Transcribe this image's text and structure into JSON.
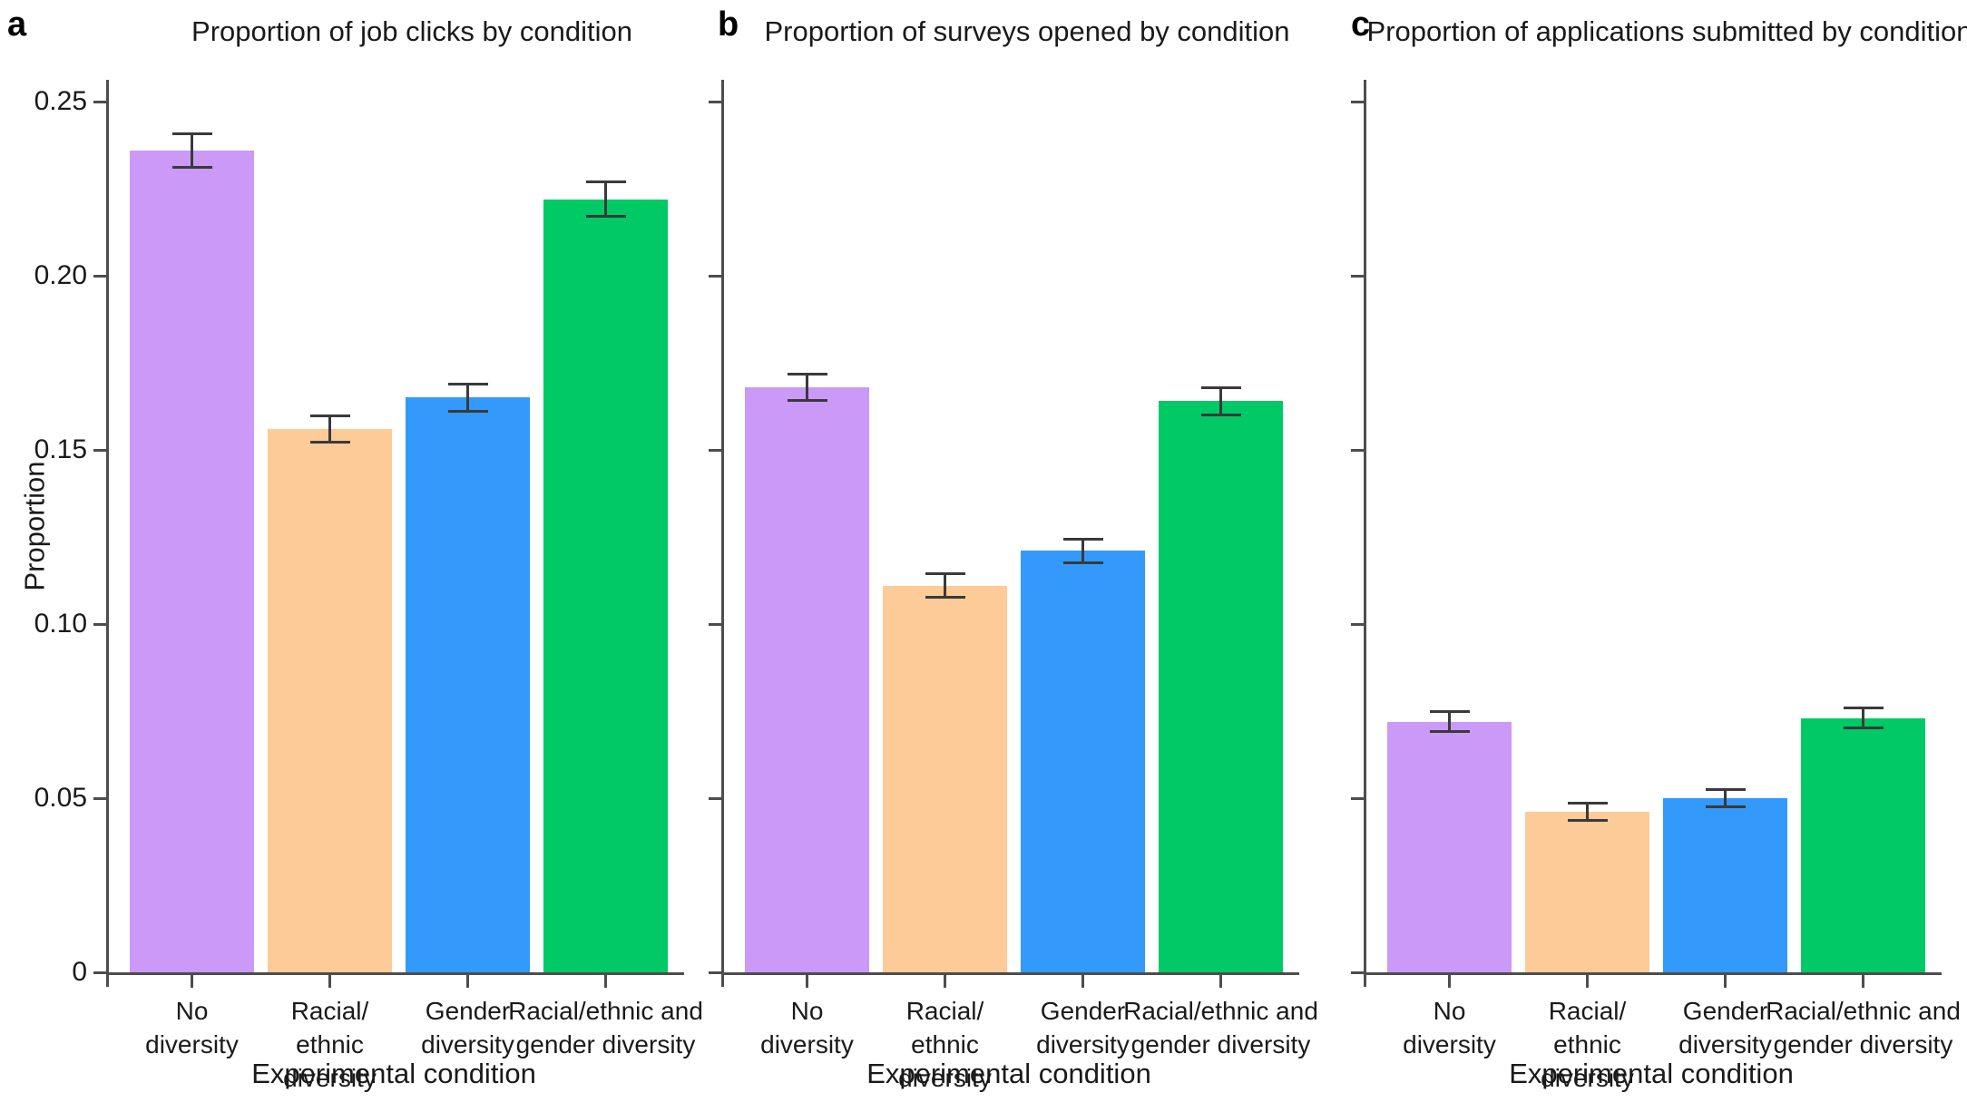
{
  "figure": {
    "xlabel": "Experimental condition",
    "ylabel": "Proportion"
  },
  "colors": {
    "bars": [
      "#CB99F7",
      "#FDCB97",
      "#3399FB",
      "#00C966"
    ],
    "axis": "#4D4D4D",
    "error_bar": "#3A3A3A",
    "text": "#1A1A1A",
    "background": "#FFFFFF"
  },
  "category_lines": [
    [
      "No",
      "diversity"
    ],
    [
      "Racial/",
      "ethnic",
      "diversity"
    ],
    [
      "Gender",
      "diversity"
    ],
    [
      "Racial/ethnic and",
      "gender diversity"
    ]
  ],
  "chart_data": [
    {
      "type": "bar",
      "panel_label": "a",
      "title": "Proportion of job clicks by condition",
      "categories": [
        "No diversity",
        "Racial/ethnic diversity",
        "Gender diversity",
        "Racial/ethnic and gender diversity"
      ],
      "values": [
        0.236,
        0.156,
        0.165,
        0.222
      ],
      "errors": [
        0.005,
        0.004,
        0.004,
        0.005
      ],
      "xlabel": "Experimental condition",
      "ylabel": "Proportion",
      "ylim": [
        0,
        0.25
      ],
      "yticks": [
        0,
        0.05,
        0.1,
        0.15,
        0.2,
        0.25
      ],
      "ytick_labels": [
        "0",
        "0.05",
        "0.10",
        "0.15",
        "0.20",
        "0.25"
      ],
      "show_ytick_labels": true,
      "grid": false,
      "legend": "none"
    },
    {
      "type": "bar",
      "panel_label": "b",
      "title": "Proportion of surveys opened by condition",
      "categories": [
        "No diversity",
        "Racial/ethnic diversity",
        "Gender diversity",
        "Racial/ethnic and gender diversity"
      ],
      "values": [
        0.168,
        0.111,
        0.121,
        0.164
      ],
      "errors": [
        0.004,
        0.0035,
        0.0035,
        0.004
      ],
      "xlabel": "Experimental condition",
      "ylabel": "",
      "ylim": [
        0,
        0.25
      ],
      "yticks": [
        0,
        0.05,
        0.1,
        0.15,
        0.2,
        0.25
      ],
      "ytick_labels": [
        "0",
        "0.05",
        "0.10",
        "0.15",
        "0.20",
        "0.25"
      ],
      "show_ytick_labels": false,
      "grid": false,
      "legend": "none"
    },
    {
      "type": "bar",
      "panel_label": "c",
      "title": "Proportion of applications submitted by condition",
      "categories": [
        "No diversity",
        "Racial/ethnic diversity",
        "Gender diversity",
        "Racial/ethnic and gender diversity"
      ],
      "values": [
        0.072,
        0.046,
        0.05,
        0.073
      ],
      "errors": [
        0.003,
        0.0026,
        0.0026,
        0.003
      ],
      "xlabel": "Experimental condition",
      "ylabel": "",
      "ylim": [
        0,
        0.25
      ],
      "yticks": [
        0,
        0.05,
        0.1,
        0.15,
        0.2,
        0.25
      ],
      "ytick_labels": [
        "0",
        "0.05",
        "0.10",
        "0.15",
        "0.20",
        "0.25"
      ],
      "show_ytick_labels": false,
      "grid": false,
      "legend": "none"
    }
  ]
}
